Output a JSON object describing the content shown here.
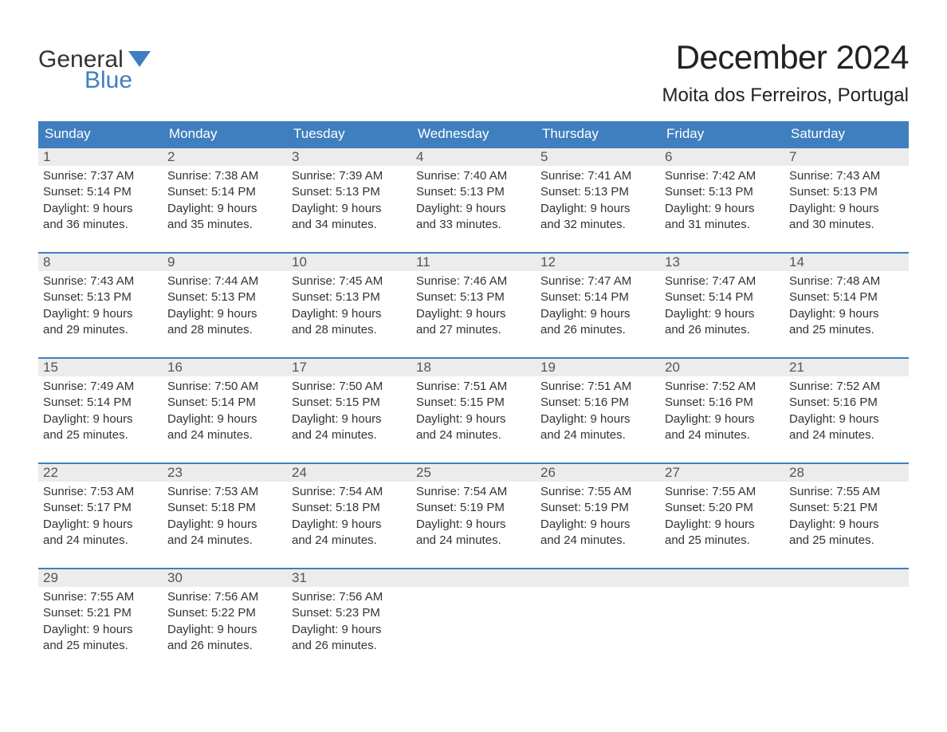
{
  "brand": {
    "word1": "General",
    "word2": "Blue",
    "logo_color": "#3f7fbf"
  },
  "title": "December 2024",
  "location": "Moita dos Ferreiros, Portugal",
  "colors": {
    "header_bg": "#3f7fbf",
    "header_text": "#ffffff",
    "daynum_bg": "#ececec",
    "body_text": "#333333",
    "page_bg": "#ffffff",
    "week_border": "#3f7fbf"
  },
  "typography": {
    "title_fontsize": 42,
    "location_fontsize": 24,
    "weekday_fontsize": 17,
    "daynum_fontsize": 17,
    "detail_fontsize": 15
  },
  "weekdays": [
    "Sunday",
    "Monday",
    "Tuesday",
    "Wednesday",
    "Thursday",
    "Friday",
    "Saturday"
  ],
  "labels": {
    "sunrise": "Sunrise:",
    "sunset": "Sunset:",
    "daylight": "Daylight:"
  },
  "weeks": [
    [
      {
        "day": "1",
        "sunrise": "7:37 AM",
        "sunset": "5:14 PM",
        "daylight1": "9 hours",
        "daylight2": "and 36 minutes."
      },
      {
        "day": "2",
        "sunrise": "7:38 AM",
        "sunset": "5:14 PM",
        "daylight1": "9 hours",
        "daylight2": "and 35 minutes."
      },
      {
        "day": "3",
        "sunrise": "7:39 AM",
        "sunset": "5:13 PM",
        "daylight1": "9 hours",
        "daylight2": "and 34 minutes."
      },
      {
        "day": "4",
        "sunrise": "7:40 AM",
        "sunset": "5:13 PM",
        "daylight1": "9 hours",
        "daylight2": "and 33 minutes."
      },
      {
        "day": "5",
        "sunrise": "7:41 AM",
        "sunset": "5:13 PM",
        "daylight1": "9 hours",
        "daylight2": "and 32 minutes."
      },
      {
        "day": "6",
        "sunrise": "7:42 AM",
        "sunset": "5:13 PM",
        "daylight1": "9 hours",
        "daylight2": "and 31 minutes."
      },
      {
        "day": "7",
        "sunrise": "7:43 AM",
        "sunset": "5:13 PM",
        "daylight1": "9 hours",
        "daylight2": "and 30 minutes."
      }
    ],
    [
      {
        "day": "8",
        "sunrise": "7:43 AM",
        "sunset": "5:13 PM",
        "daylight1": "9 hours",
        "daylight2": "and 29 minutes."
      },
      {
        "day": "9",
        "sunrise": "7:44 AM",
        "sunset": "5:13 PM",
        "daylight1": "9 hours",
        "daylight2": "and 28 minutes."
      },
      {
        "day": "10",
        "sunrise": "7:45 AM",
        "sunset": "5:13 PM",
        "daylight1": "9 hours",
        "daylight2": "and 28 minutes."
      },
      {
        "day": "11",
        "sunrise": "7:46 AM",
        "sunset": "5:13 PM",
        "daylight1": "9 hours",
        "daylight2": "and 27 minutes."
      },
      {
        "day": "12",
        "sunrise": "7:47 AM",
        "sunset": "5:14 PM",
        "daylight1": "9 hours",
        "daylight2": "and 26 minutes."
      },
      {
        "day": "13",
        "sunrise": "7:47 AM",
        "sunset": "5:14 PM",
        "daylight1": "9 hours",
        "daylight2": "and 26 minutes."
      },
      {
        "day": "14",
        "sunrise": "7:48 AM",
        "sunset": "5:14 PM",
        "daylight1": "9 hours",
        "daylight2": "and 25 minutes."
      }
    ],
    [
      {
        "day": "15",
        "sunrise": "7:49 AM",
        "sunset": "5:14 PM",
        "daylight1": "9 hours",
        "daylight2": "and 25 minutes."
      },
      {
        "day": "16",
        "sunrise": "7:50 AM",
        "sunset": "5:14 PM",
        "daylight1": "9 hours",
        "daylight2": "and 24 minutes."
      },
      {
        "day": "17",
        "sunrise": "7:50 AM",
        "sunset": "5:15 PM",
        "daylight1": "9 hours",
        "daylight2": "and 24 minutes."
      },
      {
        "day": "18",
        "sunrise": "7:51 AM",
        "sunset": "5:15 PM",
        "daylight1": "9 hours",
        "daylight2": "and 24 minutes."
      },
      {
        "day": "19",
        "sunrise": "7:51 AM",
        "sunset": "5:16 PM",
        "daylight1": "9 hours",
        "daylight2": "and 24 minutes."
      },
      {
        "day": "20",
        "sunrise": "7:52 AM",
        "sunset": "5:16 PM",
        "daylight1": "9 hours",
        "daylight2": "and 24 minutes."
      },
      {
        "day": "21",
        "sunrise": "7:52 AM",
        "sunset": "5:16 PM",
        "daylight1": "9 hours",
        "daylight2": "and 24 minutes."
      }
    ],
    [
      {
        "day": "22",
        "sunrise": "7:53 AM",
        "sunset": "5:17 PM",
        "daylight1": "9 hours",
        "daylight2": "and 24 minutes."
      },
      {
        "day": "23",
        "sunrise": "7:53 AM",
        "sunset": "5:18 PM",
        "daylight1": "9 hours",
        "daylight2": "and 24 minutes."
      },
      {
        "day": "24",
        "sunrise": "7:54 AM",
        "sunset": "5:18 PM",
        "daylight1": "9 hours",
        "daylight2": "and 24 minutes."
      },
      {
        "day": "25",
        "sunrise": "7:54 AM",
        "sunset": "5:19 PM",
        "daylight1": "9 hours",
        "daylight2": "and 24 minutes."
      },
      {
        "day": "26",
        "sunrise": "7:55 AM",
        "sunset": "5:19 PM",
        "daylight1": "9 hours",
        "daylight2": "and 24 minutes."
      },
      {
        "day": "27",
        "sunrise": "7:55 AM",
        "sunset": "5:20 PM",
        "daylight1": "9 hours",
        "daylight2": "and 25 minutes."
      },
      {
        "day": "28",
        "sunrise": "7:55 AM",
        "sunset": "5:21 PM",
        "daylight1": "9 hours",
        "daylight2": "and 25 minutes."
      }
    ],
    [
      {
        "day": "29",
        "sunrise": "7:55 AM",
        "sunset": "5:21 PM",
        "daylight1": "9 hours",
        "daylight2": "and 25 minutes."
      },
      {
        "day": "30",
        "sunrise": "7:56 AM",
        "sunset": "5:22 PM",
        "daylight1": "9 hours",
        "daylight2": "and 26 minutes."
      },
      {
        "day": "31",
        "sunrise": "7:56 AM",
        "sunset": "5:23 PM",
        "daylight1": "9 hours",
        "daylight2": "and 26 minutes."
      },
      null,
      null,
      null,
      null
    ]
  ]
}
